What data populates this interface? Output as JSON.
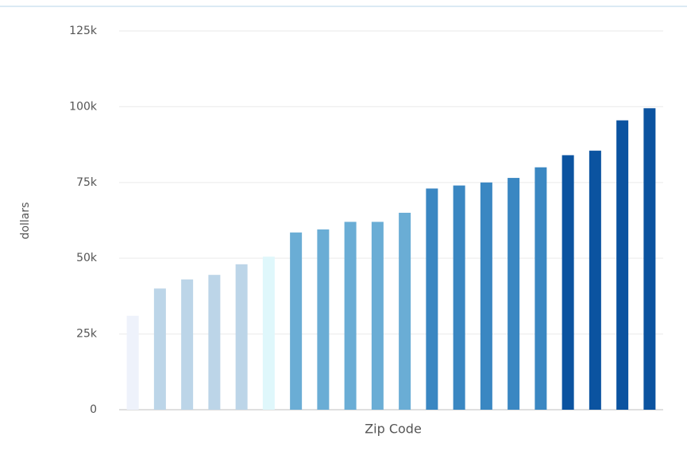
{
  "chart_data": {
    "type": "bar",
    "y_label": "dollars",
    "x_label": "Zip Code",
    "categories": [
      null,
      null,
      null,
      null,
      null,
      null,
      null,
      null,
      null,
      null,
      null,
      null,
      null,
      null,
      null,
      null,
      null,
      null,
      null,
      null
    ],
    "values": [
      31000,
      40000,
      43000,
      44500,
      48000,
      50500,
      58500,
      59500,
      62000,
      62000,
      65000,
      73000,
      74000,
      75000,
      76500,
      80000,
      84000,
      85500,
      95500,
      99500
    ],
    "colors": [
      "#eef2fb",
      "#bcd5e8",
      "#bcd5e8",
      "#bcd5e8",
      "#bcd5e8",
      "#dff7fb",
      "#6aadd5",
      "#6aadd5",
      "#6aadd5",
      "#6aadd5",
      "#6aadd5",
      "#3a87c2",
      "#3a87c2",
      "#3a87c2",
      "#3a87c2",
      "#3a87c2",
      "#0b53a0",
      "#0b53a0",
      "#0b53a0",
      "#0b53a0"
    ],
    "ylim": [
      0,
      125000
    ],
    "yticks": [
      0,
      {
        "value": 25000,
        "label": "25k"
      },
      {
        "value": 50000,
        "label": "50k"
      },
      {
        "value": 75000,
        "label": "75k"
      },
      {
        "value": 100000,
        "label": "100k"
      },
      {
        "value": 125000,
        "label": "125k"
      }
    ],
    "grid": true
  }
}
